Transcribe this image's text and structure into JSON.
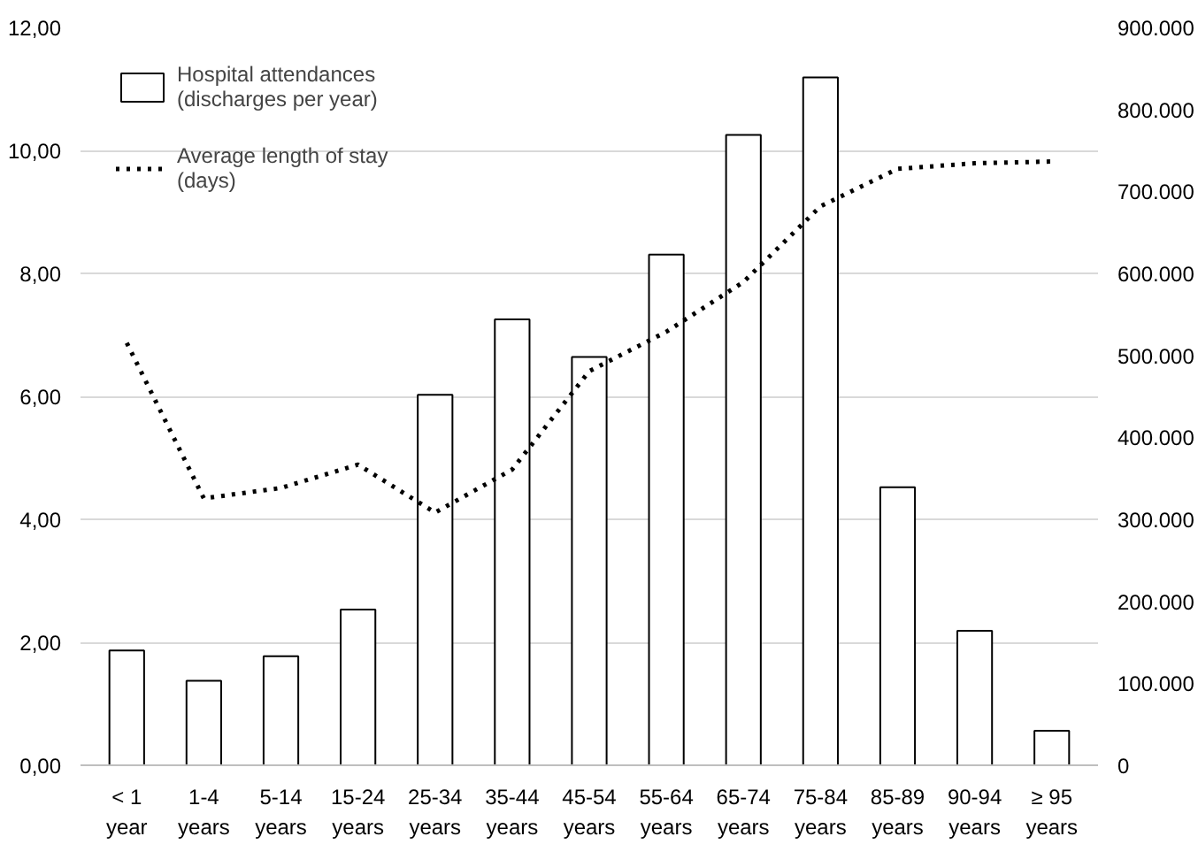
{
  "chart_data": {
    "type": "bar",
    "categories": [
      "< 1\nyear",
      "1-4\nyears",
      "5-14\nyears",
      "15-24\nyears",
      "25-34\nyears",
      "35-44\nyears",
      "45-54\nyears",
      "55-64\nyears",
      "65-74\nyears",
      "75-84\nyears",
      "85-89\nyears",
      "90-94\nyears",
      "≥ 95\nyears"
    ],
    "series": [
      {
        "name": "Hospital attendances\n(discharges per year)",
        "axis": "y2",
        "color": "#ffffff",
        "values": [
          140000,
          103000,
          133000,
          190000,
          452000,
          544000,
          498000,
          623000,
          769000,
          839000,
          339000,
          164000,
          42000
        ]
      },
      {
        "name": "Average length of stay\n(days)",
        "type": "line",
        "color": "#000000",
        "line_style": "dotted",
        "values": [
          6.87,
          4.34,
          4.51,
          4.89,
          4.11,
          4.81,
          6.41,
          7.05,
          7.86,
          9.09,
          9.7,
          9.79,
          9.82
        ]
      }
    ],
    "ylim": [
      0,
      12
    ],
    "yticks": [
      {
        "value": 0,
        "label": "0,00"
      },
      {
        "value": 2,
        "label": "2,00"
      },
      {
        "value": 4,
        "label": "4,00"
      },
      {
        "value": 6,
        "label": "6,00"
      },
      {
        "value": 8,
        "label": "8,00"
      },
      {
        "value": 10,
        "label": "10,00"
      },
      {
        "value": 12,
        "label": "12,00"
      }
    ],
    "y2lim": [
      0,
      900000
    ],
    "y2ticks": [
      0,
      {
        "value": 100000,
        "label": "100.000"
      },
      {
        "value": 200000,
        "label": "200.000"
      },
      {
        "value": 300000,
        "label": "300.000"
      },
      {
        "value": 400000,
        "label": "400.000"
      },
      {
        "value": 500000,
        "label": "500.000"
      },
      {
        "value": 600000,
        "label": "600.000"
      },
      {
        "value": 700000,
        "label": "700.000"
      },
      {
        "value": 800000,
        "label": "800.000"
      },
      {
        "value": 900000,
        "label": "900.000"
      }
    ],
    "grid": "y",
    "legend": "top left"
  }
}
